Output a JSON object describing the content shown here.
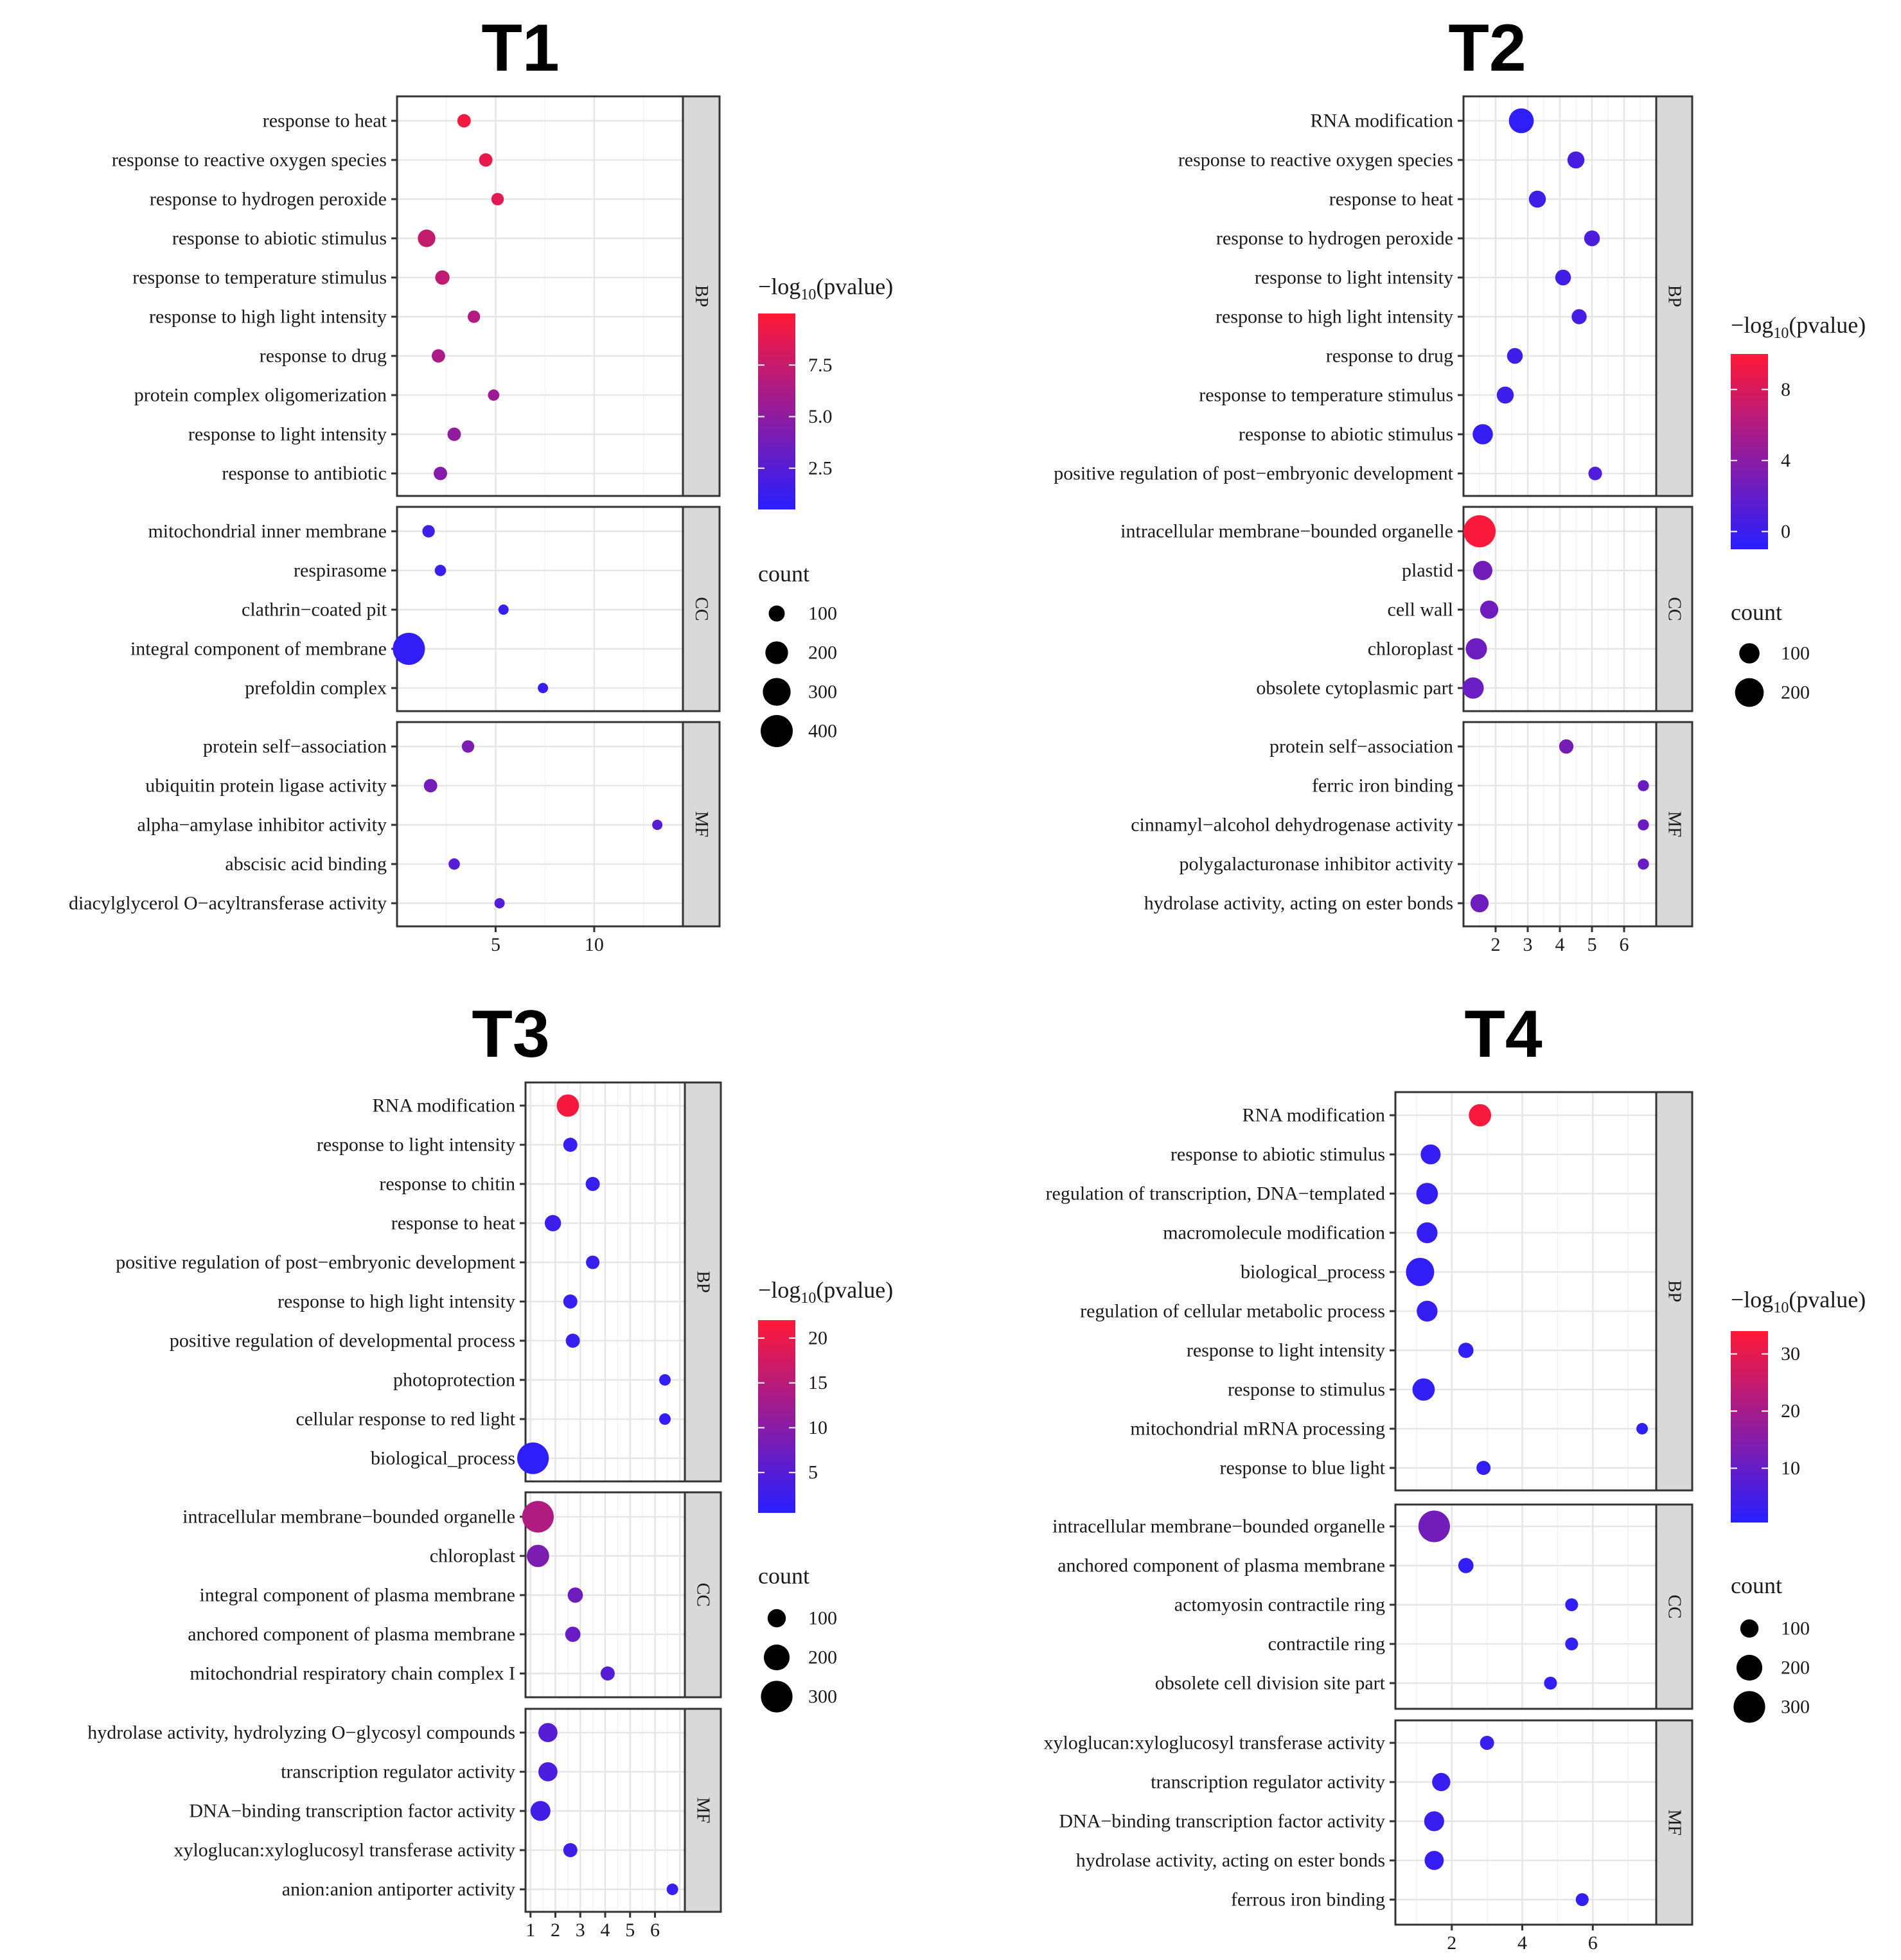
{
  "chart_data": [
    {
      "type": "scatter",
      "title": "T1",
      "xlim": [
        0,
        14.5
      ],
      "xticks": [
        5,
        10
      ],
      "color_legend": {
        "title_prefix": "−log",
        "title_sub": "10",
        "title_suffix": "(pvalue)",
        "range": [
          0.5,
          10
        ],
        "ticks": [
          "7.5",
          "5.0",
          "2.5"
        ],
        "tick_values": [
          7.5,
          5.0,
          2.5
        ]
      },
      "size_legend": {
        "title": "count",
        "levels": [
          "100",
          "200",
          "300",
          "400"
        ],
        "level_values": [
          100,
          200,
          300,
          400
        ],
        "max_count": 400
      },
      "facets": [
        {
          "name": "BP",
          "terms": [
            {
              "term": "response to heat",
              "x": 3.4,
              "count": 70,
              "logp": 9.6
            },
            {
              "term": "response to reactive oxygen species",
              "x": 4.5,
              "count": 70,
              "logp": 9.0
            },
            {
              "term": "response to hydrogen peroxide",
              "x": 5.1,
              "count": 60,
              "logp": 8.7
            },
            {
              "term": "response to abiotic stimulus",
              "x": 1.5,
              "count": 120,
              "logp": 7.4
            },
            {
              "term": "response to temperature stimulus",
              "x": 2.3,
              "count": 80,
              "logp": 7.2
            },
            {
              "term": "response to high light intensity",
              "x": 3.9,
              "count": 60,
              "logp": 6.6
            },
            {
              "term": "response to drug",
              "x": 2.1,
              "count": 70,
              "logp": 6.3
            },
            {
              "term": "protein complex oligomerization",
              "x": 4.9,
              "count": 50,
              "logp": 5.6
            },
            {
              "term": "response to light intensity",
              "x": 2.9,
              "count": 70,
              "logp": 5.2
            },
            {
              "term": "response to antibiotic",
              "x": 2.2,
              "count": 70,
              "logp": 4.6
            }
          ]
        },
        {
          "name": "CC",
          "terms": [
            {
              "term": "mitochondrial inner membrane",
              "x": 1.6,
              "count": 60,
              "logp": 1.5
            },
            {
              "term": "respirasome",
              "x": 2.2,
              "count": 50,
              "logp": 1.3
            },
            {
              "term": "clathrin−coated pit",
              "x": 5.4,
              "count": 40,
              "logp": 1.2
            },
            {
              "term": "integral component of membrane",
              "x": 0.6,
              "count": 400,
              "logp": 0.9
            },
            {
              "term": "prefoldin complex",
              "x": 7.4,
              "count": 30,
              "logp": 1.1
            }
          ]
        },
        {
          "name": "MF",
          "terms": [
            {
              "term": "protein self−association",
              "x": 3.6,
              "count": 60,
              "logp": 4.2
            },
            {
              "term": "ubiquitin protein ligase activity",
              "x": 1.7,
              "count": 70,
              "logp": 3.8
            },
            {
              "term": "alpha−amylase inhibitor activity",
              "x": 13.2,
              "count": 30,
              "logp": 2.6
            },
            {
              "term": "abscisic acid binding",
              "x": 2.9,
              "count": 50,
              "logp": 2.5
            },
            {
              "term": "diacylglycerol O−acyltransferase activity",
              "x": 5.2,
              "count": 40,
              "logp": 2.4
            }
          ]
        }
      ]
    },
    {
      "type": "scatter",
      "title": "T2",
      "xlim": [
        1.0,
        7.0
      ],
      "xticks": [
        2,
        3,
        4,
        5,
        6
      ],
      "color_legend": {
        "title_prefix": "−log",
        "title_sub": "10",
        "title_suffix": "(pvalue)",
        "range": [
          -1.0,
          10.0
        ],
        "ticks": [
          "8",
          "4",
          "0"
        ],
        "tick_values": [
          8,
          4,
          0
        ]
      },
      "size_legend": {
        "title": "count",
        "levels": [
          "100",
          "200"
        ],
        "level_values": [
          100,
          200
        ],
        "max_count": 250
      },
      "facets": [
        {
          "name": "BP",
          "terms": [
            {
              "term": "RNA modification",
              "x": 2.8,
              "count": 150,
              "logp": -0.6
            },
            {
              "term": "response to reactive oxygen species",
              "x": 4.5,
              "count": 70,
              "logp": 0.6
            },
            {
              "term": "response to heat",
              "x": 3.3,
              "count": 70,
              "logp": 0.2
            },
            {
              "term": "response to hydrogen peroxide",
              "x": 5.0,
              "count": 60,
              "logp": 0.8
            },
            {
              "term": "response to light intensity",
              "x": 4.1,
              "count": 60,
              "logp": 0.3
            },
            {
              "term": "response to high light intensity",
              "x": 4.6,
              "count": 55,
              "logp": 0.5
            },
            {
              "term": "response to drug",
              "x": 2.6,
              "count": 60,
              "logp": 0.2
            },
            {
              "term": "response to temperature stimulus",
              "x": 2.3,
              "count": 70,
              "logp": 0.0
            },
            {
              "term": "response to abiotic stimulus",
              "x": 1.6,
              "count": 100,
              "logp": -0.4
            },
            {
              "term": "positive regulation of post−embryonic development",
              "x": 5.1,
              "count": 45,
              "logp": 1.0
            }
          ]
        },
        {
          "name": "CC",
          "terms": [
            {
              "term": "intracellular membrane−bounded organelle",
              "x": 1.5,
              "count": 250,
              "logp": 9.8
            },
            {
              "term": "plastid",
              "x": 1.6,
              "count": 90,
              "logp": 2.8
            },
            {
              "term": "cell wall",
              "x": 1.8,
              "count": 80,
              "logp": 2.6
            },
            {
              "term": "chloroplast",
              "x": 1.4,
              "count": 110,
              "logp": 2.5
            },
            {
              "term": "obsolete cytoplasmic part",
              "x": 1.3,
              "count": 110,
              "logp": 2.3
            }
          ]
        },
        {
          "name": "MF",
          "terms": [
            {
              "term": "protein self−association",
              "x": 4.2,
              "count": 50,
              "logp": 3.0
            },
            {
              "term": "ferric iron binding",
              "x": 6.6,
              "count": 30,
              "logp": 2.4
            },
            {
              "term": "cinnamyl−alcohol dehydrogenase activity",
              "x": 6.6,
              "count": 30,
              "logp": 2.4
            },
            {
              "term": "polygalacturonase inhibitor activity",
              "x": 6.6,
              "count": 30,
              "logp": 2.2
            },
            {
              "term": "hydrolase activity, acting on ester bonds",
              "x": 1.5,
              "count": 80,
              "logp": 2.6
            }
          ]
        }
      ]
    },
    {
      "type": "scatter",
      "title": "T3",
      "xlim": [
        0.8,
        7.2
      ],
      "xticks": [
        1,
        2,
        3,
        4,
        5,
        6
      ],
      "color_legend": {
        "title_prefix": "−log",
        "title_sub": "10",
        "title_suffix": "(pvalue)",
        "range": [
          0.5,
          22.0
        ],
        "ticks": [
          "20",
          "15",
          "10",
          "5"
        ],
        "tick_values": [
          20,
          15,
          10,
          5
        ]
      },
      "size_legend": {
        "title": "count",
        "levels": [
          "100",
          "200",
          "300"
        ],
        "level_values": [
          100,
          200,
          300
        ],
        "max_count": 310
      },
      "facets": [
        {
          "name": "BP",
          "terms": [
            {
              "term": "RNA modification",
              "x": 2.5,
              "count": 150,
              "logp": 21.0
            },
            {
              "term": "response to light intensity",
              "x": 2.6,
              "count": 60,
              "logp": 2.0
            },
            {
              "term": "response to chitin",
              "x": 3.5,
              "count": 60,
              "logp": 2.0
            },
            {
              "term": "response to heat",
              "x": 1.9,
              "count": 80,
              "logp": 2.5
            },
            {
              "term": "positive regulation of post−embryonic development",
              "x": 3.5,
              "count": 55,
              "logp": 2.0
            },
            {
              "term": "response to high light intensity",
              "x": 2.6,
              "count": 60,
              "logp": 2.0
            },
            {
              "term": "positive regulation of developmental process",
              "x": 2.7,
              "count": 60,
              "logp": 2.0
            },
            {
              "term": "photoprotection",
              "x": 6.4,
              "count": 40,
              "logp": 1.5
            },
            {
              "term": "cellular response to red light",
              "x": 6.4,
              "count": 40,
              "logp": 1.5
            },
            {
              "term": "biological_process",
              "x": 1.1,
              "count": 300,
              "logp": 1.0
            }
          ]
        },
        {
          "name": "CC",
          "terms": [
            {
              "term": "intracellular membrane−bounded organelle",
              "x": 1.3,
              "count": 300,
              "logp": 14.0
            },
            {
              "term": "chloroplast",
              "x": 1.3,
              "count": 150,
              "logp": 9.0
            },
            {
              "term": "integral component of plasma membrane",
              "x": 2.8,
              "count": 70,
              "logp": 7.5
            },
            {
              "term": "anchored component of plasma membrane",
              "x": 2.7,
              "count": 70,
              "logp": 7.0
            },
            {
              "term": "mitochondrial respiratory chain complex I",
              "x": 4.1,
              "count": 60,
              "logp": 5.0
            }
          ]
        },
        {
          "name": "MF",
          "terms": [
            {
              "term": "hydrolase activity, hydrolyzing O−glycosyl compounds",
              "x": 1.7,
              "count": 110,
              "logp": 5.0
            },
            {
              "term": "transcription regulator activity",
              "x": 1.7,
              "count": 110,
              "logp": 4.0
            },
            {
              "term": "DNA−binding transcription factor activity",
              "x": 1.4,
              "count": 120,
              "logp": 3.0
            },
            {
              "term": "xyloglucan:xyloglucosyl transferase activity",
              "x": 2.6,
              "count": 60,
              "logp": 3.0
            },
            {
              "term": "anion:anion antiporter activity",
              "x": 6.7,
              "count": 40,
              "logp": 2.0
            }
          ]
        }
      ]
    },
    {
      "type": "scatter",
      "title": "T4",
      "xlim": [
        0.4,
        7.8
      ],
      "xticks": [
        2,
        4,
        6
      ],
      "color_legend": {
        "title_prefix": "−log",
        "title_sub": "10",
        "title_suffix": "(pvalue)",
        "range": [
          0.5,
          34.0
        ],
        "ticks": [
          "30",
          "20",
          "10"
        ],
        "tick_values": [
          30,
          20,
          10
        ]
      },
      "size_legend": {
        "title": "count",
        "levels": [
          "100",
          "200",
          "300"
        ],
        "level_values": [
          100,
          200,
          300
        ],
        "max_count": 310
      },
      "facets": [
        {
          "name": "BP",
          "terms": [
            {
              "term": "RNA modification",
              "x": 2.8,
              "count": 150,
              "logp": 33.0
            },
            {
              "term": "response to abiotic stimulus",
              "x": 1.4,
              "count": 120,
              "logp": 2.5
            },
            {
              "term": "regulation of transcription, DNA−templated",
              "x": 1.3,
              "count": 140,
              "logp": 2.5
            },
            {
              "term": "macromolecule modification",
              "x": 1.3,
              "count": 130,
              "logp": 2.5
            },
            {
              "term": "biological_process",
              "x": 1.1,
              "count": 240,
              "logp": 2.0
            },
            {
              "term": "regulation of cellular metabolic process",
              "x": 1.3,
              "count": 130,
              "logp": 2.5
            },
            {
              "term": "response to light intensity",
              "x": 2.4,
              "count": 70,
              "logp": 2.0
            },
            {
              "term": "response to stimulus",
              "x": 1.2,
              "count": 150,
              "logp": 2.0
            },
            {
              "term": "mitochondrial mRNA processing",
              "x": 7.4,
              "count": 40,
              "logp": 1.5
            },
            {
              "term": "response to blue light",
              "x": 2.9,
              "count": 60,
              "logp": 2.0
            }
          ]
        },
        {
          "name": "CC",
          "terms": [
            {
              "term": "intracellular membrane−bounded organelle",
              "x": 1.5,
              "count": 300,
              "logp": 12.0
            },
            {
              "term": "anchored component of plasma membrane",
              "x": 2.4,
              "count": 70,
              "logp": 2.0
            },
            {
              "term": "actomyosin contractile ring",
              "x": 5.4,
              "count": 50,
              "logp": 2.0
            },
            {
              "term": "contractile ring",
              "x": 5.4,
              "count": 50,
              "logp": 2.0
            },
            {
              "term": "obsolete cell division site part",
              "x": 4.8,
              "count": 50,
              "logp": 2.0
            }
          ]
        },
        {
          "name": "MF",
          "terms": [
            {
              "term": "xyloglucan:xyloglucosyl transferase activity",
              "x": 3.0,
              "count": 60,
              "logp": 3.0
            },
            {
              "term": "transcription regulator activity",
              "x": 1.7,
              "count": 100,
              "logp": 3.0
            },
            {
              "term": "DNA−binding transcription factor activity",
              "x": 1.5,
              "count": 120,
              "logp": 3.0
            },
            {
              "term": "hydrolase activity, acting on ester bonds",
              "x": 1.5,
              "count": 110,
              "logp": 2.5
            },
            {
              "term": "ferrous iron binding",
              "x": 5.7,
              "count": 50,
              "logp": 2.5
            }
          ]
        }
      ]
    }
  ]
}
